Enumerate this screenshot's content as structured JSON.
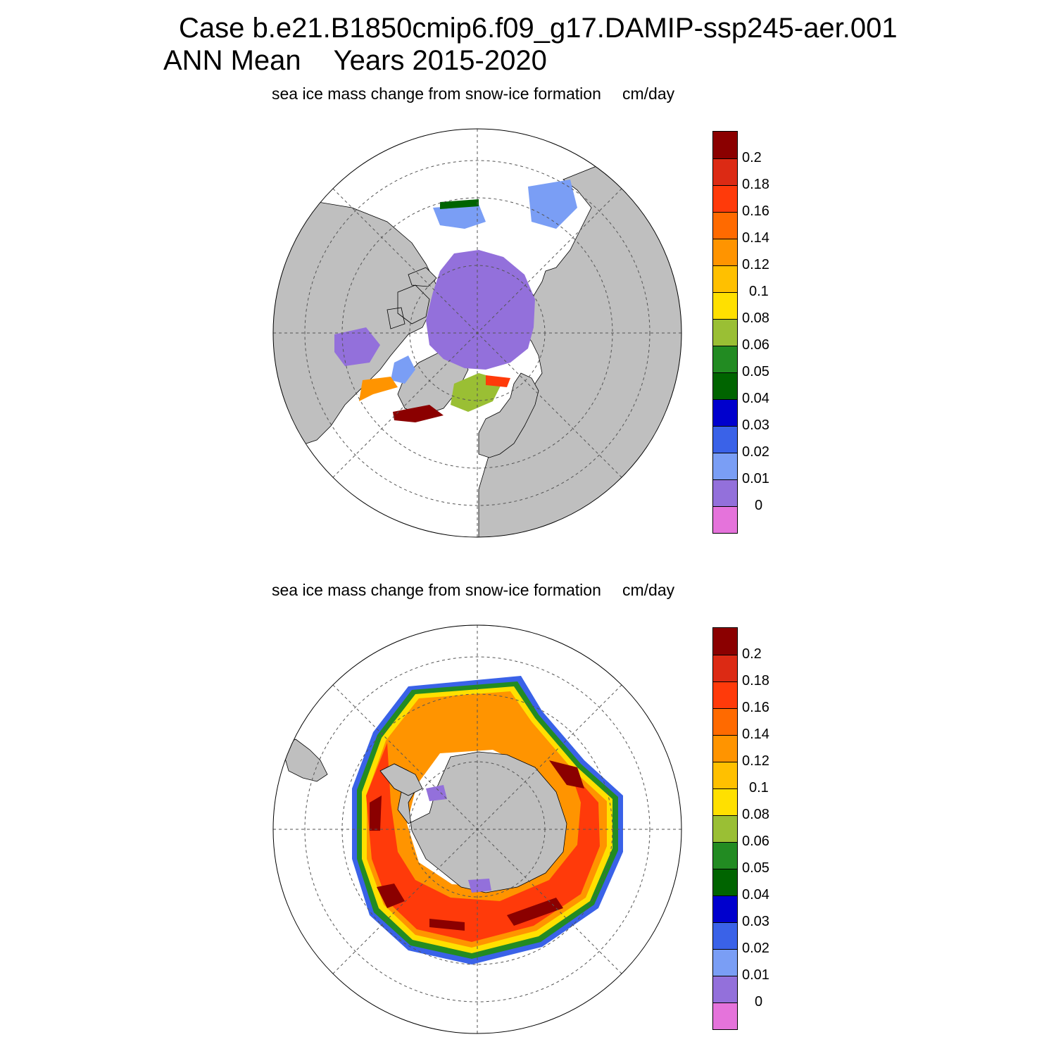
{
  "header": {
    "case_line": "Case b.e21.B1850cmip6.f09_g17.DAMIP-ssp245-aer.001",
    "period": "ANN Mean",
    "years": "Years 2015-2020"
  },
  "panels": [
    {
      "id": "north",
      "title": "sea ice mass change from snow-ice formation",
      "units": "cm/day"
    },
    {
      "id": "south",
      "title": "sea ice mass change from snow-ice formation",
      "units": "cm/day"
    }
  ],
  "colorbar": {
    "labels": [
      "0.2",
      "0.18",
      "0.16",
      "0.14",
      "0.12",
      "0.1",
      "0.08",
      "0.06",
      "0.05",
      "0.04",
      "0.03",
      "0.02",
      "0.01",
      "0"
    ],
    "colors": [
      "#8b0000",
      "#dc2a14",
      "#ff3a0a",
      "#ff6a00",
      "#ff9400",
      "#ffc000",
      "#ffe000",
      "#9abf34",
      "#228b22",
      "#006400",
      "#0000cd",
      "#3a62e8",
      "#7a9ef5",
      "#9370db",
      "#e573db"
    ]
  },
  "colors": {
    "land": "#bfbfbf",
    "ocean": "#ffffff",
    "grid": "#555555"
  }
}
